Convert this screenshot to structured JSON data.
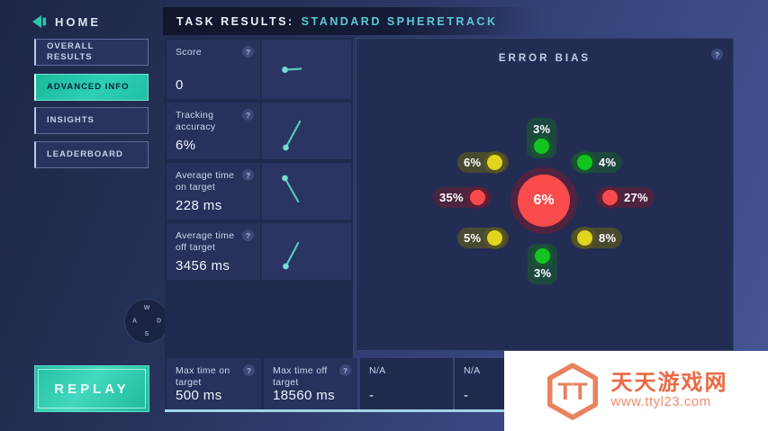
{
  "header": {
    "home_label": "HOME",
    "title_prefix": "TASK RESULTS:",
    "title_task": "STANDARD SPHERETRACK"
  },
  "sidebar": {
    "items": [
      {
        "label": "OVERALL\nRESULTS",
        "active": false
      },
      {
        "label": "ADVANCED INFO",
        "active": true
      },
      {
        "label": "INSIGHTS",
        "active": false
      },
      {
        "label": "LEADERBOARD",
        "active": false
      }
    ],
    "replay_label": "REPLAY"
  },
  "stats": [
    {
      "label": "Score",
      "value": "0",
      "help": "?",
      "spark_points": [
        [
          26,
          32
        ],
        [
          44,
          31
        ]
      ]
    },
    {
      "label": "Tracking\naccuracy",
      "value": "6%",
      "help": "?",
      "spark_points": [
        [
          27,
          50
        ],
        [
          43,
          21
        ]
      ]
    },
    {
      "label": "Average time\non target",
      "value": "228 ms",
      "help": "?",
      "spark_points": [
        [
          26,
          17
        ],
        [
          41,
          43
        ]
      ]
    },
    {
      "label": "Average time\noff target",
      "value": "3456 ms",
      "help": "?",
      "spark_points": [
        [
          27,
          48
        ],
        [
          41,
          22
        ]
      ]
    }
  ],
  "bottom_stats": [
    {
      "label": "Max time on\ntarget",
      "value": "500 ms",
      "help": "?",
      "na": false
    },
    {
      "label": "Max time off\ntarget",
      "value": "18560 ms",
      "help": "?",
      "na": false
    },
    {
      "label": "N/A",
      "value": "-",
      "na": true
    },
    {
      "label": "N/A",
      "value": "-",
      "na": true
    }
  ],
  "error_bias": {
    "title": "ERROR BIAS",
    "help": "?",
    "center": {
      "value": "6%",
      "color": "#fa4b4d"
    },
    "satellites": [
      {
        "position": "top",
        "value": "3%",
        "color": "green"
      },
      {
        "position": "top-left",
        "value": "6%",
        "color": "yellow"
      },
      {
        "position": "top-right",
        "value": "4%",
        "color": "green"
      },
      {
        "position": "left",
        "value": "35%",
        "color": "red"
      },
      {
        "position": "right",
        "value": "27%",
        "color": "red"
      },
      {
        "position": "bottom-left",
        "value": "5%",
        "color": "yellow"
      },
      {
        "position": "bottom-right",
        "value": "8%",
        "color": "yellow"
      },
      {
        "position": "bottom",
        "value": "3%",
        "color": "green"
      }
    ]
  },
  "wasd": {
    "top": "W",
    "left": "A",
    "right": "D",
    "bottom": "S"
  },
  "watermark": {
    "site_name": "天天游戏网",
    "site_url": "www.ttyl23.com"
  },
  "colors": {
    "accent_teal": "#24c5ab",
    "title_teal": "#5fc8da",
    "spark": "#54c9c0",
    "spark_dot": "#7ad8cf",
    "bias_center_red": "#fa4b4d",
    "dot_green": "#12c41f",
    "dot_yellow": "#e0d51d",
    "dot_red": "#fa4a4e",
    "bottom_accent": "#9fd6e9",
    "watermark_orange": "#ea6a45"
  }
}
